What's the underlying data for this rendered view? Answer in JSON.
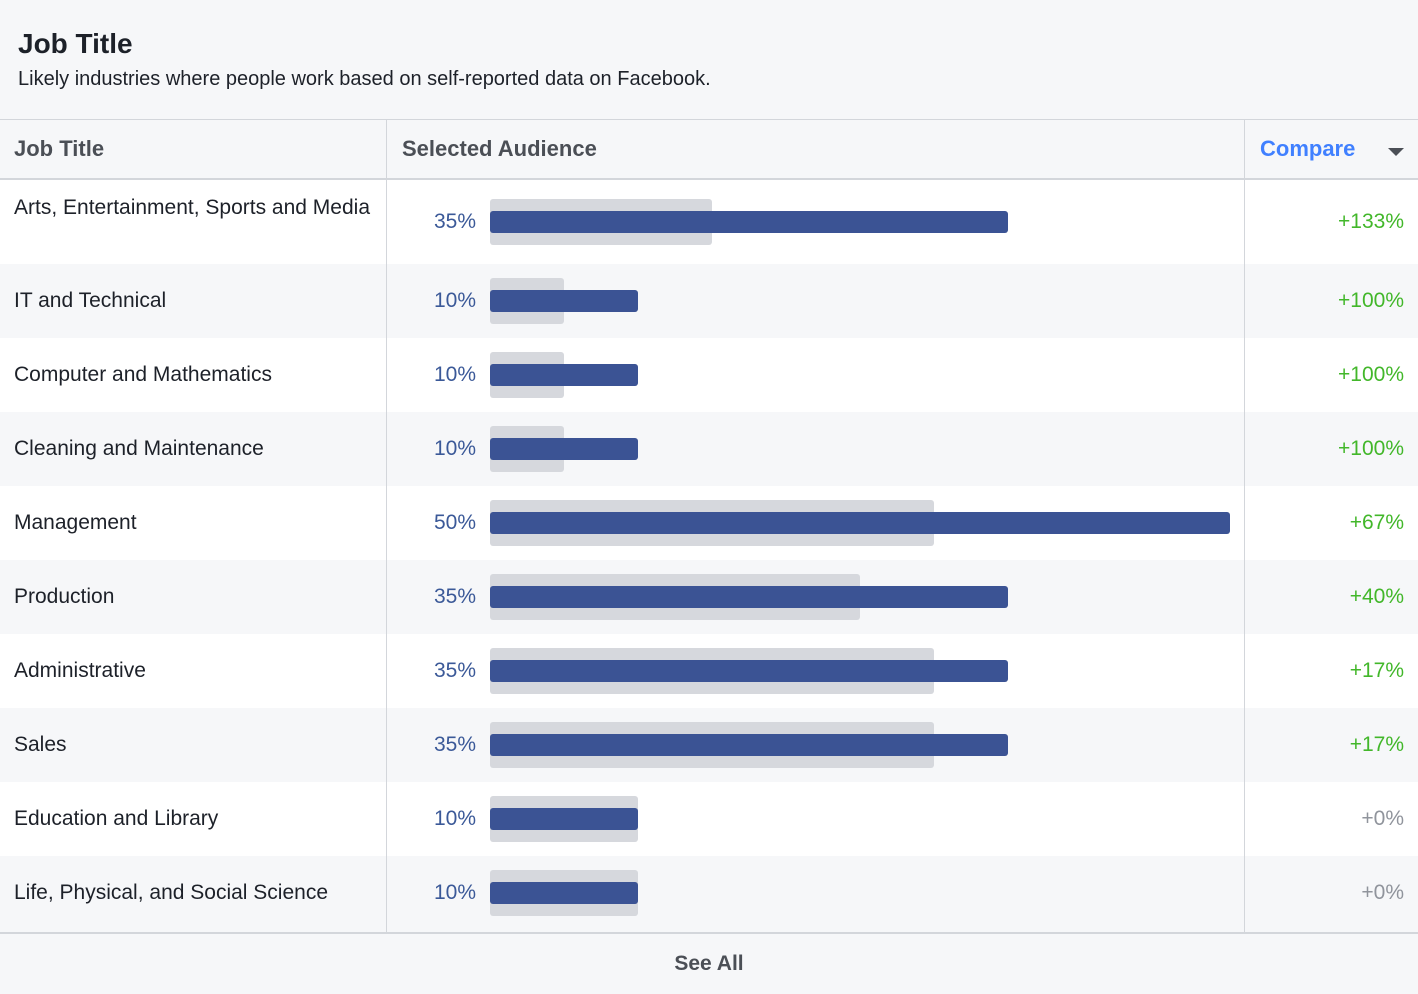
{
  "card": {
    "title": "Job Title",
    "subtitle": "Likely industries where people work based on self-reported data on Facebook."
  },
  "table": {
    "headers": {
      "job_title": "Job Title",
      "selected_audience": "Selected Audience",
      "compare": "Compare",
      "compare_icon": "chevron-down-icon"
    },
    "rows": [
      {
        "label": "Arts, Entertainment, Sports and Media",
        "pct": "35%",
        "selected": 35,
        "benchmark": 15,
        "compare": "+133%",
        "trend": "positive"
      },
      {
        "label": "IT and Technical",
        "pct": "10%",
        "selected": 10,
        "benchmark": 5,
        "compare": "+100%",
        "trend": "positive"
      },
      {
        "label": "Computer and Mathematics",
        "pct": "10%",
        "selected": 10,
        "benchmark": 5,
        "compare": "+100%",
        "trend": "positive"
      },
      {
        "label": "Cleaning and Maintenance",
        "pct": "10%",
        "selected": 10,
        "benchmark": 5,
        "compare": "+100%",
        "trend": "positive"
      },
      {
        "label": "Management",
        "pct": "50%",
        "selected": 50,
        "benchmark": 30,
        "compare": "+67%",
        "trend": "positive"
      },
      {
        "label": "Production",
        "pct": "35%",
        "selected": 35,
        "benchmark": 25,
        "compare": "+40%",
        "trend": "positive"
      },
      {
        "label": "Administrative",
        "pct": "35%",
        "selected": 35,
        "benchmark": 30,
        "compare": "+17%",
        "trend": "positive"
      },
      {
        "label": "Sales",
        "pct": "35%",
        "selected": 35,
        "benchmark": 30,
        "compare": "+17%",
        "trend": "positive"
      },
      {
        "label": "Education and Library",
        "pct": "10%",
        "selected": 10,
        "benchmark": 10,
        "compare": "+0%",
        "trend": "neutral"
      },
      {
        "label": "Life, Physical, and Social Science",
        "pct": "10%",
        "selected": 10,
        "benchmark": 10,
        "compare": "+0%",
        "trend": "neutral"
      }
    ]
  },
  "footer": {
    "see_all": "See All"
  },
  "colors": {
    "selected_bar": "#3b5394",
    "benchmark_bar": "#d6d8dd",
    "pct_text": "#3b5998",
    "positive": "#42b72a",
    "neutral": "#90949c",
    "compare_link": "#4080ff"
  }
}
